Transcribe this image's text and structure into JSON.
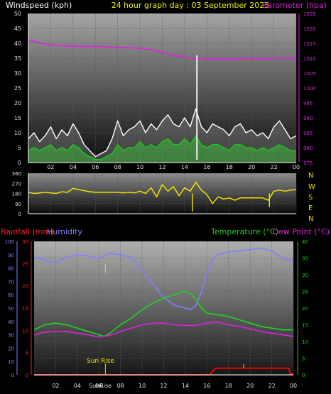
{
  "chart_data": [
    {
      "id": "wind-baro",
      "type": "line",
      "title": "24 hour graph day : 03 September 2025",
      "left_label": "Windspeed (kph)",
      "right_label": "Barometer (hpa)",
      "ylim": [
        0,
        50
      ],
      "y_ticks": [
        0,
        5,
        10,
        15,
        20,
        25,
        30,
        35,
        40,
        45,
        50
      ],
      "y2lim": [
        975,
        1025
      ],
      "y2_ticks": [
        975,
        980,
        985,
        990,
        995,
        1000,
        1005,
        1010,
        1015,
        1020,
        1025
      ],
      "xlim": [
        0,
        24
      ],
      "x_ticks": [
        "02",
        "04",
        "06",
        "08",
        "10",
        "12",
        "14",
        "16",
        "18",
        "20",
        "22",
        "00"
      ],
      "series": [
        {
          "key": "gust",
          "color": "#ffffff",
          "x": [
            0,
            0.5,
            1,
            1.5,
            2,
            2.5,
            3,
            3.5,
            4,
            4.5,
            5,
            5.5,
            6,
            6.5,
            7,
            7.5,
            8,
            8.5,
            9,
            9.5,
            10,
            10.5,
            11,
            11.5,
            12,
            12.5,
            13,
            13.5,
            14,
            14.5,
            15,
            15.5,
            16,
            16.5,
            17,
            17.5,
            18,
            18.5,
            19,
            19.5,
            20,
            20.5,
            21,
            21.5,
            22,
            22.5,
            23,
            23.5,
            24
          ],
          "values": [
            8,
            10,
            7,
            9,
            12,
            8,
            11,
            9,
            13,
            10,
            6,
            4,
            2,
            3,
            4,
            8,
            14,
            9,
            11,
            12,
            14,
            10,
            13,
            11,
            14,
            16,
            13,
            12,
            15,
            12,
            18,
            12,
            10,
            13,
            12,
            11,
            9,
            12,
            13,
            10,
            11,
            9,
            10,
            8,
            12,
            14,
            11,
            8,
            9
          ]
        },
        {
          "key": "wind",
          "color": "#20c020",
          "x": [
            0,
            0.5,
            1,
            1.5,
            2,
            2.5,
            3,
            3.5,
            4,
            4.5,
            5,
            5.5,
            6,
            6.5,
            7,
            7.5,
            8,
            8.5,
            9,
            9.5,
            10,
            10.5,
            11,
            11.5,
            12,
            12.5,
            13,
            13.5,
            14,
            14.5,
            15,
            15.5,
            16,
            16.5,
            17,
            17.5,
            18,
            18.5,
            19,
            19.5,
            20,
            20.5,
            21,
            21.5,
            22,
            22.5,
            23,
            23.5,
            24
          ],
          "values": [
            4,
            5,
            4,
            5,
            6,
            4,
            5,
            4,
            6,
            5,
            3,
            2,
            1,
            1,
            2,
            3,
            6,
            4,
            5,
            5,
            7,
            5,
            6,
            5,
            7,
            8,
            6,
            6,
            8,
            6,
            9,
            6,
            5,
            6,
            6,
            5,
            4,
            6,
            6,
            5,
            5,
            4,
            5,
            4,
            5,
            6,
            5,
            4,
            4
          ]
        },
        {
          "key": "barometer",
          "axis": "right",
          "color": "#e020e0",
          "x": [
            0,
            1,
            2,
            3,
            4,
            5,
            6,
            7,
            8,
            9,
            10,
            11,
            12,
            13,
            14,
            15,
            16,
            17,
            18,
            19,
            20,
            21,
            22,
            23,
            24
          ],
          "values": [
            1016,
            1015.2,
            1014.5,
            1014.2,
            1014,
            1014,
            1014,
            1013.8,
            1013.6,
            1013.5,
            1013.3,
            1012.8,
            1012,
            1011,
            1010.3,
            1009.9,
            1009.8,
            1009.8,
            1009.9,
            1009.9,
            1010,
            1009.9,
            1010,
            1010,
            1009.9
          ]
        }
      ],
      "spike": {
        "x": 15.1,
        "y": 36
      }
    },
    {
      "id": "direction",
      "type": "line",
      "ylim": [
        0,
        360
      ],
      "y_ticks": [
        0,
        90,
        180,
        270,
        360
      ],
      "compass": [
        "N",
        "W",
        "S",
        "E",
        "N"
      ],
      "series": [
        {
          "key": "direction",
          "color": "#f0e000",
          "x": [
            0,
            0.5,
            1,
            1.5,
            2,
            2.5,
            3,
            3.5,
            4,
            4.5,
            5,
            5.5,
            6,
            6.5,
            7,
            7.5,
            8,
            8.5,
            9,
            9.5,
            10,
            10.5,
            11,
            11.5,
            12,
            12.5,
            13,
            13.5,
            14,
            14.5,
            15,
            15.5,
            16,
            16.5,
            17,
            17.5,
            18,
            18.5,
            19,
            19.5,
            20,
            20.5,
            21,
            21.5,
            22,
            22.5,
            23,
            23.5,
            24
          ],
          "values": [
            190,
            180,
            185,
            190,
            185,
            180,
            195,
            190,
            225,
            215,
            205,
            195,
            190,
            190,
            190,
            190,
            190,
            185,
            190,
            185,
            200,
            180,
            230,
            150,
            260,
            200,
            240,
            160,
            230,
            200,
            280,
            210,
            170,
            90,
            150,
            130,
            140,
            120,
            140,
            140,
            140,
            140,
            140,
            120,
            200,
            210,
            200,
            210,
            215
          ]
        }
      ],
      "spikes": [
        {
          "x": 14.7,
          "y": 20
        },
        {
          "x": 21.6,
          "y": 60
        }
      ]
    },
    {
      "id": "temp-hum-rain",
      "type": "line",
      "left_label": "Rainfall (mm)",
      "left2_label": "Humidity",
      "right_label": "Temperature (°C)",
      "right2_label": "Dew Point (°C)",
      "rain_ticks": [
        0,
        5,
        10,
        15,
        20,
        25,
        30
      ],
      "humidity_ticks": [
        0,
        10,
        20,
        30,
        40,
        50,
        60,
        70,
        80,
        90,
        100
      ],
      "temp_ticks": [
        0,
        5,
        10,
        15,
        20,
        25,
        30,
        35,
        40
      ],
      "annotation": "Sun Rise",
      "sunrise_label": "SunRise",
      "sunrise_x": 6.6,
      "series": [
        {
          "key": "humidity",
          "color": "#8080ff",
          "x": [
            0,
            1,
            2,
            3,
            4,
            5,
            6,
            7,
            8,
            9,
            10,
            11,
            12,
            13,
            14,
            14.5,
            15,
            15.5,
            16,
            16.5,
            17,
            18,
            19,
            20,
            21,
            22,
            23,
            24
          ],
          "values": [
            88,
            86,
            84,
            88,
            90,
            89,
            87,
            91,
            90,
            88,
            78,
            68,
            58,
            52,
            50,
            49,
            52,
            62,
            76,
            86,
            90,
            92,
            93,
            94,
            95,
            93,
            87,
            86
          ]
        },
        {
          "key": "temperature",
          "color": "#20d020",
          "x": [
            0,
            1,
            2,
            3,
            4,
            5,
            6,
            6.5,
            7,
            8,
            9,
            10,
            11,
            12,
            13,
            13.5,
            14,
            14.5,
            15,
            15.5,
            16,
            17,
            18,
            19,
            20,
            21,
            22,
            23,
            24
          ],
          "values": [
            13.5,
            15,
            15.5,
            15,
            14,
            13,
            12,
            11.5,
            12.5,
            15,
            17,
            19.5,
            21.5,
            23,
            24,
            24.8,
            25,
            24.5,
            22.5,
            20,
            18.5,
            18,
            17.5,
            16.5,
            15.5,
            14.5,
            14,
            13.5,
            13.5
          ]
        },
        {
          "key": "dewpoint",
          "color": "#e020e0",
          "x": [
            0,
            1,
            2,
            3,
            4,
            5,
            6,
            7,
            8,
            9,
            10,
            11,
            12,
            13,
            14,
            15,
            16,
            17,
            18,
            19,
            20,
            21,
            22,
            23,
            24
          ],
          "values": [
            12,
            12.8,
            13,
            13,
            12.5,
            12,
            11.3,
            11.8,
            13,
            14,
            15,
            15.5,
            15.5,
            15,
            14.8,
            14.8,
            15.5,
            15.8,
            15,
            14.5,
            13.8,
            13,
            12.5,
            12,
            11.5
          ]
        },
        {
          "key": "rainfall",
          "color": "#ff0000",
          "x": [
            0,
            16.3,
            16.4,
            16.8,
            23.6,
            23.7,
            24
          ],
          "values": [
            0,
            0,
            0.5,
            1.5,
            1.5,
            0.2,
            0.2
          ]
        }
      ]
    }
  ]
}
